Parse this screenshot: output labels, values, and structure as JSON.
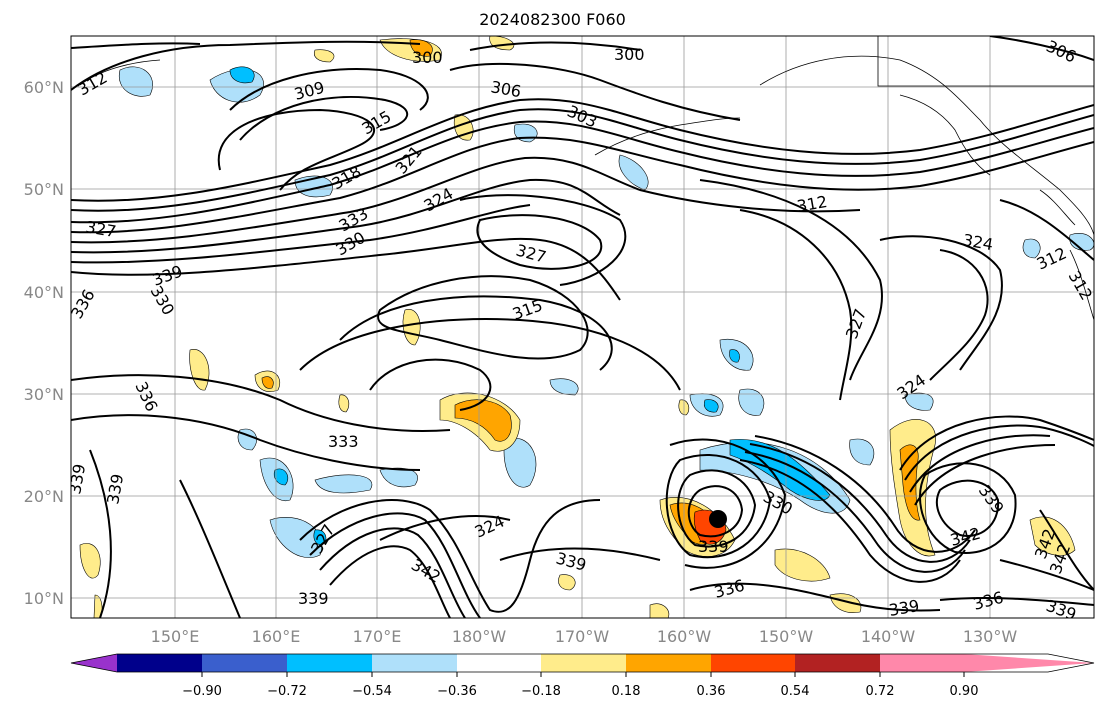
{
  "title": "2024082300 F060",
  "lat_labels": [
    "60°N",
    "50°N",
    "40°N",
    "30°N",
    "20°N",
    "10°N"
  ],
  "lon_labels": [
    "150°E",
    "160°E",
    "170°E",
    "180°W",
    "170°W",
    "160°W",
    "150°W",
    "140°W",
    "130°W"
  ],
  "contour_labels": [
    "312",
    "309",
    "300",
    "300",
    "306",
    "306",
    "303",
    "315",
    "321",
    "318",
    "324",
    "327",
    "330",
    "333",
    "327",
    "312",
    "324",
    "312",
    "312",
    "339",
    "330",
    "336",
    "315",
    "327",
    "324",
    "336",
    "333",
    "339",
    "339",
    "327",
    "324",
    "342",
    "339",
    "339",
    "336",
    "342",
    "339",
    "339",
    "339",
    "336",
    "339",
    "342",
    "342",
    "330"
  ],
  "colorbar": {
    "ticks": [
      "−0.90",
      "−0.72",
      "−0.54",
      "−0.36",
      "−0.18",
      "0.18",
      "0.36",
      "0.54",
      "0.72",
      "0.90"
    ],
    "colors": [
      "#9932cc",
      "#00008b",
      "#3a5fcd",
      "#00bfff",
      "#afe0fa",
      "#ffffff",
      "#ffec8b",
      "#ffa500",
      "#ff4500",
      "#b22222",
      "#ff88aa"
    ]
  }
}
